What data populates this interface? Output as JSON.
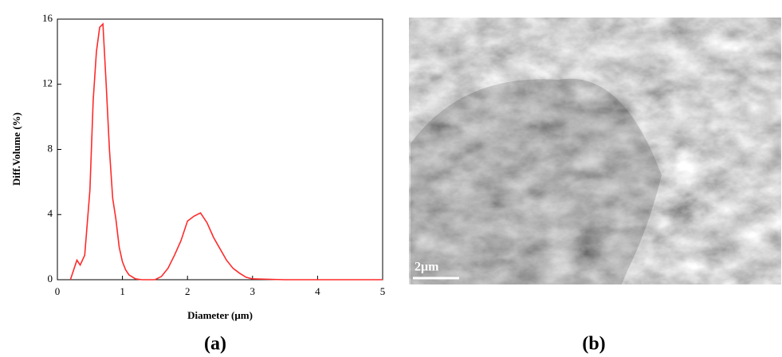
{
  "chart_data": {
    "type": "line",
    "xlabel": "Diameter (μm)",
    "ylabel": "Diff.Volume (%)",
    "color": "#ff2a2a",
    "x": [
      0.2,
      0.3,
      0.35,
      0.42,
      0.5,
      0.55,
      0.6,
      0.65,
      0.7,
      0.75,
      0.8,
      0.85,
      0.9,
      0.95,
      1.0,
      1.05,
      1.1,
      1.2,
      1.3,
      1.5,
      1.6,
      1.7,
      1.8,
      1.9,
      2.0,
      2.1,
      2.2,
      2.3,
      2.4,
      2.5,
      2.6,
      2.7,
      2.8,
      2.9,
      3.0,
      3.5,
      4.0,
      4.5,
      5.0
    ],
    "values": [
      0,
      1.2,
      0.9,
      1.5,
      5.5,
      11,
      14,
      15.5,
      15.7,
      12,
      8,
      5,
      3.7,
      2,
      1.1,
      0.6,
      0.3,
      0.05,
      0,
      0,
      0.2,
      0.7,
      1.5,
      2.4,
      3.6,
      3.9,
      4.1,
      3.5,
      2.6,
      1.9,
      1.2,
      0.7,
      0.4,
      0.15,
      0.05,
      0,
      0,
      0,
      0
    ],
    "xlim": [
      0,
      5
    ],
    "ylim": [
      0,
      16
    ],
    "xticks": [
      0,
      1,
      2,
      3,
      4,
      5
    ],
    "yticks": [
      0,
      4,
      8,
      12,
      16
    ],
    "grid": false
  },
  "panels": {
    "a": "(a)",
    "b": "(b)"
  },
  "micrograph": {
    "scale_bar": "2μm"
  }
}
